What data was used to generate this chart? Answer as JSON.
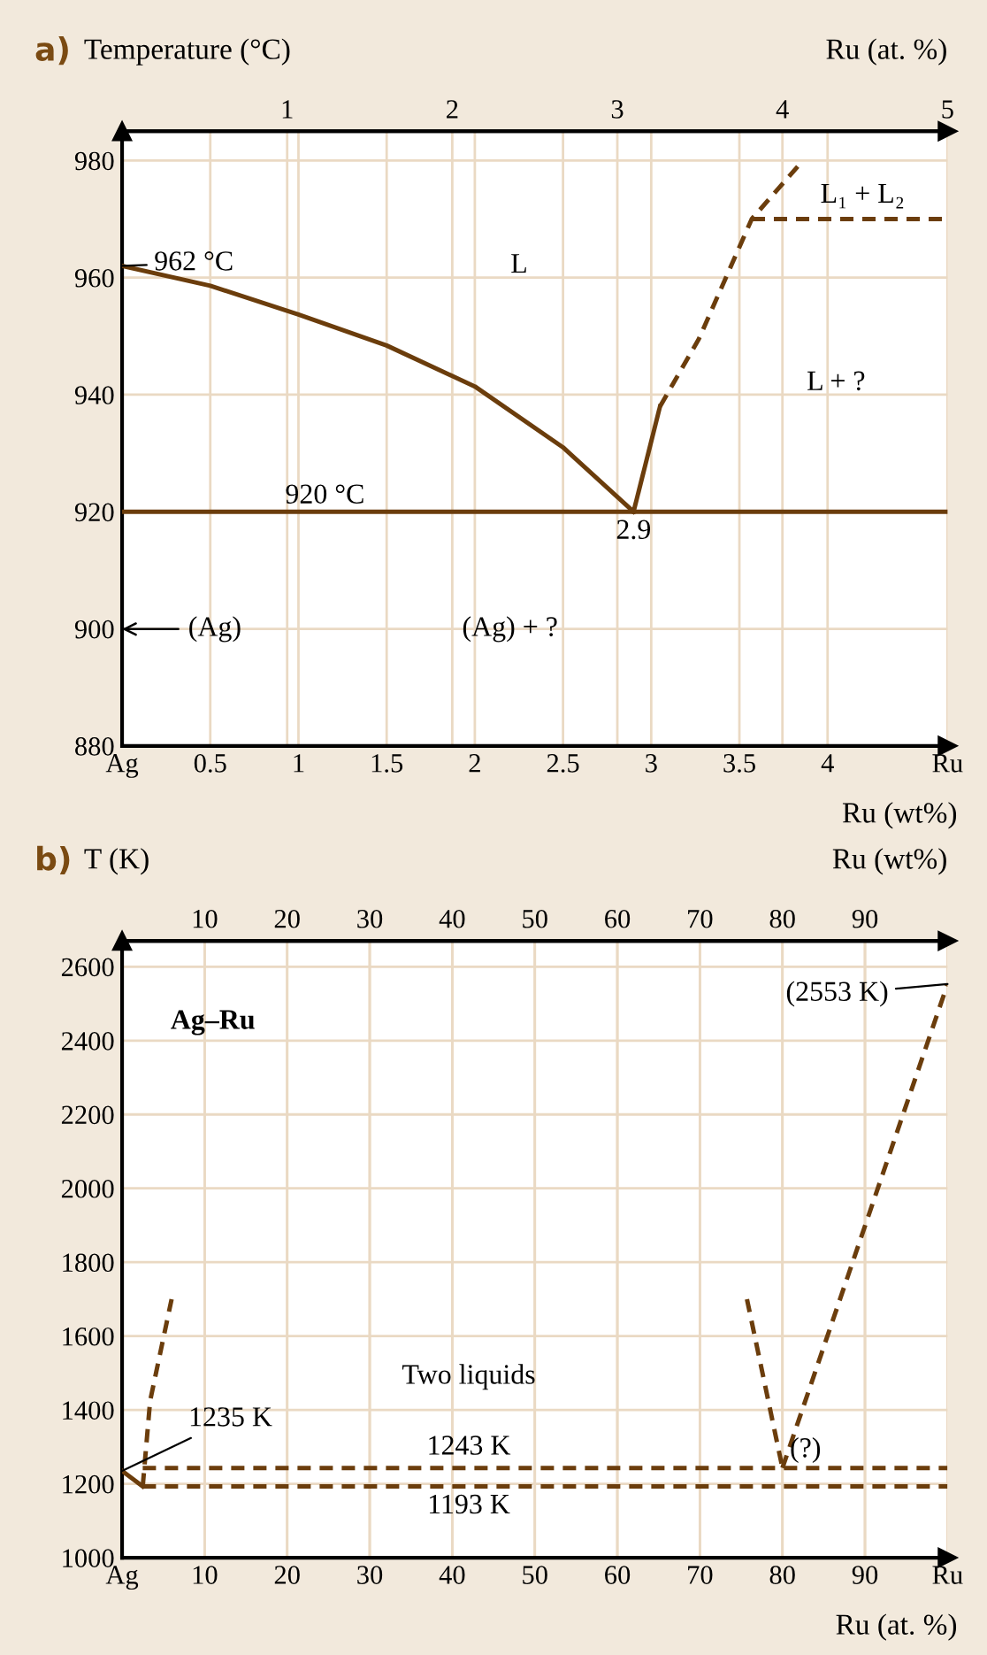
{
  "chart_data": [
    {
      "type": "line",
      "title": "a)",
      "ylabel": "Temperature (°C)",
      "xlabel": "Ru (wt%)",
      "x2label": "Ru (at. %)",
      "xlim": [
        0,
        4.68
      ],
      "ylim": [
        880,
        985
      ],
      "xticks": [
        {
          "value": 0,
          "label": "Ag"
        },
        0.5,
        1,
        1.5,
        2,
        2.5,
        3,
        3.5,
        4,
        {
          "value": 4.68,
          "label": "Ru"
        }
      ],
      "yticks": [
        880,
        900,
        920,
        940,
        960,
        980
      ],
      "x2lim": [
        0,
        5
      ],
      "x2ticks": [
        1,
        2,
        3,
        4,
        5
      ],
      "grid": true,
      "legend": false,
      "series": [
        {
          "color": "#6b3d0c",
          "line_style": "solid",
          "x": [
            0,
            0.5,
            1.0,
            1.5,
            2.0,
            2.5,
            2.9
          ],
          "values": [
            962,
            958.6,
            953.7,
            948.4,
            941.4,
            931,
            920
          ]
        },
        {
          "color": "#6b3d0c",
          "line_style": "solid",
          "x": [
            0,
            4.68
          ],
          "values": [
            920,
            920
          ]
        },
        {
          "color": "#6b3d0c",
          "line_style": "solid",
          "x": [
            2.9,
            3.05
          ],
          "values": [
            920,
            938
          ]
        },
        {
          "color": "#6b3d0c",
          "line_style": "dashed",
          "x": [
            3.05,
            3.27,
            3.57,
            3.86
          ],
          "values": [
            938,
            949.5,
            970,
            980
          ]
        },
        {
          "color": "#6b3d0c",
          "line_style": "dashed",
          "x": [
            3.57,
            4.68
          ],
          "values": [
            970,
            970
          ]
        }
      ],
      "annotations": [
        {
          "text": "962 °C",
          "x": 0,
          "y": 962
        },
        {
          "text": "920 °C",
          "x": 1.15,
          "y": 920
        },
        {
          "text": "2.9",
          "x": 2.9,
          "y": 920
        },
        "L",
        "L₁ + L₂",
        "L + ?",
        "(Ag) + ?",
        "(Ag)"
      ]
    },
    {
      "type": "line",
      "title": "b)",
      "ylabel": "T (K)",
      "xlabel": "Ru (at. %)",
      "x2label": "Ru (wt%)",
      "xlim": [
        0,
        100
      ],
      "ylim": [
        1000,
        2670
      ],
      "xticks": [
        {
          "value": 0,
          "label": "Ag"
        },
        10,
        20,
        30,
        40,
        50,
        60,
        70,
        80,
        90,
        {
          "value": 100,
          "label": "Ru"
        }
      ],
      "yticks": [
        1000,
        1200,
        1400,
        1600,
        1800,
        2000,
        2200,
        2400,
        2600
      ],
      "x2lim": [
        0,
        100
      ],
      "x2ticks": [
        10,
        20,
        30,
        40,
        50,
        60,
        70,
        80,
        90
      ],
      "grid": true,
      "legend": false,
      "series": [
        {
          "color": "#6b3d0c",
          "line_style": "solid",
          "x": [
            0,
            2.5
          ],
          "values": [
            1235,
            1193
          ]
        },
        {
          "color": "#6b3d0c",
          "line_style": "dashed",
          "x": [
            2.5,
            3.4,
            6.0
          ],
          "values": [
            1193,
            1425,
            1700
          ]
        },
        {
          "color": "#6b3d0c",
          "line_style": "dashed",
          "x": [
            2.5,
            100
          ],
          "values": [
            1243,
            1243
          ]
        },
        {
          "color": "#6b3d0c",
          "line_style": "dashed",
          "x": [
            2.5,
            100
          ],
          "values": [
            1193,
            1193
          ]
        },
        {
          "color": "#6b3d0c",
          "line_style": "dashed",
          "x": [
            75.7,
            80
          ],
          "values": [
            1700,
            1243
          ]
        },
        {
          "color": "#6b3d0c",
          "line_style": "dashed",
          "x": [
            80,
            100
          ],
          "values": [
            1243,
            2553
          ]
        }
      ],
      "annotations": [
        "Ag–Ru",
        "Two liquids",
        {
          "text": "1235 K",
          "x": 0,
          "y": 1235
        },
        {
          "text": "1243 K",
          "x": 42,
          "y": 1243
        },
        {
          "text": "1193 K",
          "x": 42,
          "y": 1193
        },
        {
          "text": "(?)",
          "x": 80,
          "y": 1243
        },
        {
          "text": "(2553 K)",
          "x": 100,
          "y": 2553
        }
      ]
    }
  ]
}
